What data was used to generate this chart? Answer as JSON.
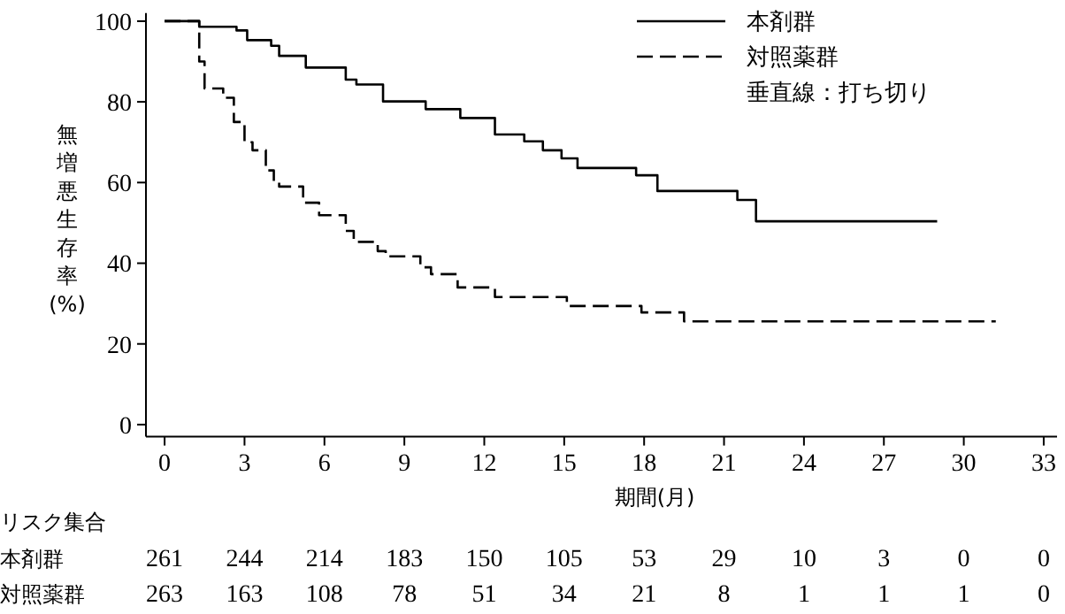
{
  "chart_data": {
    "type": "step",
    "xlabel": "期間(月)",
    "ylabel": "無増悪生存率(%)",
    "xlim": [
      -0.7,
      33.5
    ],
    "ylim": [
      -3,
      102
    ],
    "xticks": [
      0,
      3,
      6,
      9,
      12,
      15,
      18,
      21,
      24,
      27,
      30,
      33
    ],
    "yticks": [
      0,
      20,
      40,
      60,
      80,
      100
    ],
    "legend": "top right",
    "grid": false,
    "series": [
      {
        "name": "本剤群",
        "color": "#000000",
        "line_style": "solid",
        "x": [
          0,
          1.3,
          2.7,
          3.1,
          4.0,
          4.3,
          5.3,
          6.8,
          7.2,
          8.2,
          9.8,
          11.1,
          12.4,
          13.5,
          14.2,
          14.9,
          15.5,
          17.7,
          18.5,
          21.5,
          22.2,
          29.0
        ],
        "values": [
          100,
          98.6,
          97.7,
          95.3,
          93.9,
          91.4,
          88.5,
          85.5,
          84.3,
          80.1,
          78.2,
          76,
          71.9,
          70.2,
          68,
          66,
          63.6,
          61.8,
          57.9,
          55.7,
          50.4,
          50.4
        ]
      },
      {
        "name": "対照薬群",
        "color": "#000000",
        "line_style": "dashed",
        "x": [
          0,
          1.3,
          1.5,
          2.2,
          2.6,
          3.0,
          3.3,
          3.8,
          4.1,
          4.3,
          5.2,
          5.8,
          6.8,
          7.1,
          8.0,
          8.3,
          9.6,
          10.0,
          11.0,
          12.4,
          15.1,
          17.9,
          19.5,
          31.2
        ],
        "values": [
          100,
          90,
          83.3,
          81,
          75,
          70,
          68,
          63,
          60,
          59,
          55,
          51.9,
          48,
          45.3,
          43,
          41.7,
          39,
          37.3,
          34,
          31.6,
          29.4,
          27.8,
          25.6,
          25.6
        ]
      }
    ],
    "annotations": [
      "垂直線：打ち切り",
      "リスク集合",
      "本剤群",
      "261",
      "244",
      "214",
      "183",
      "150",
      "105",
      "53",
      "29",
      "10",
      "3",
      "0",
      "0",
      "対照薬群",
      "263",
      "163",
      "108",
      "78",
      "51",
      "34",
      "21",
      "8",
      "1",
      "1",
      "1",
      "0"
    ]
  }
}
